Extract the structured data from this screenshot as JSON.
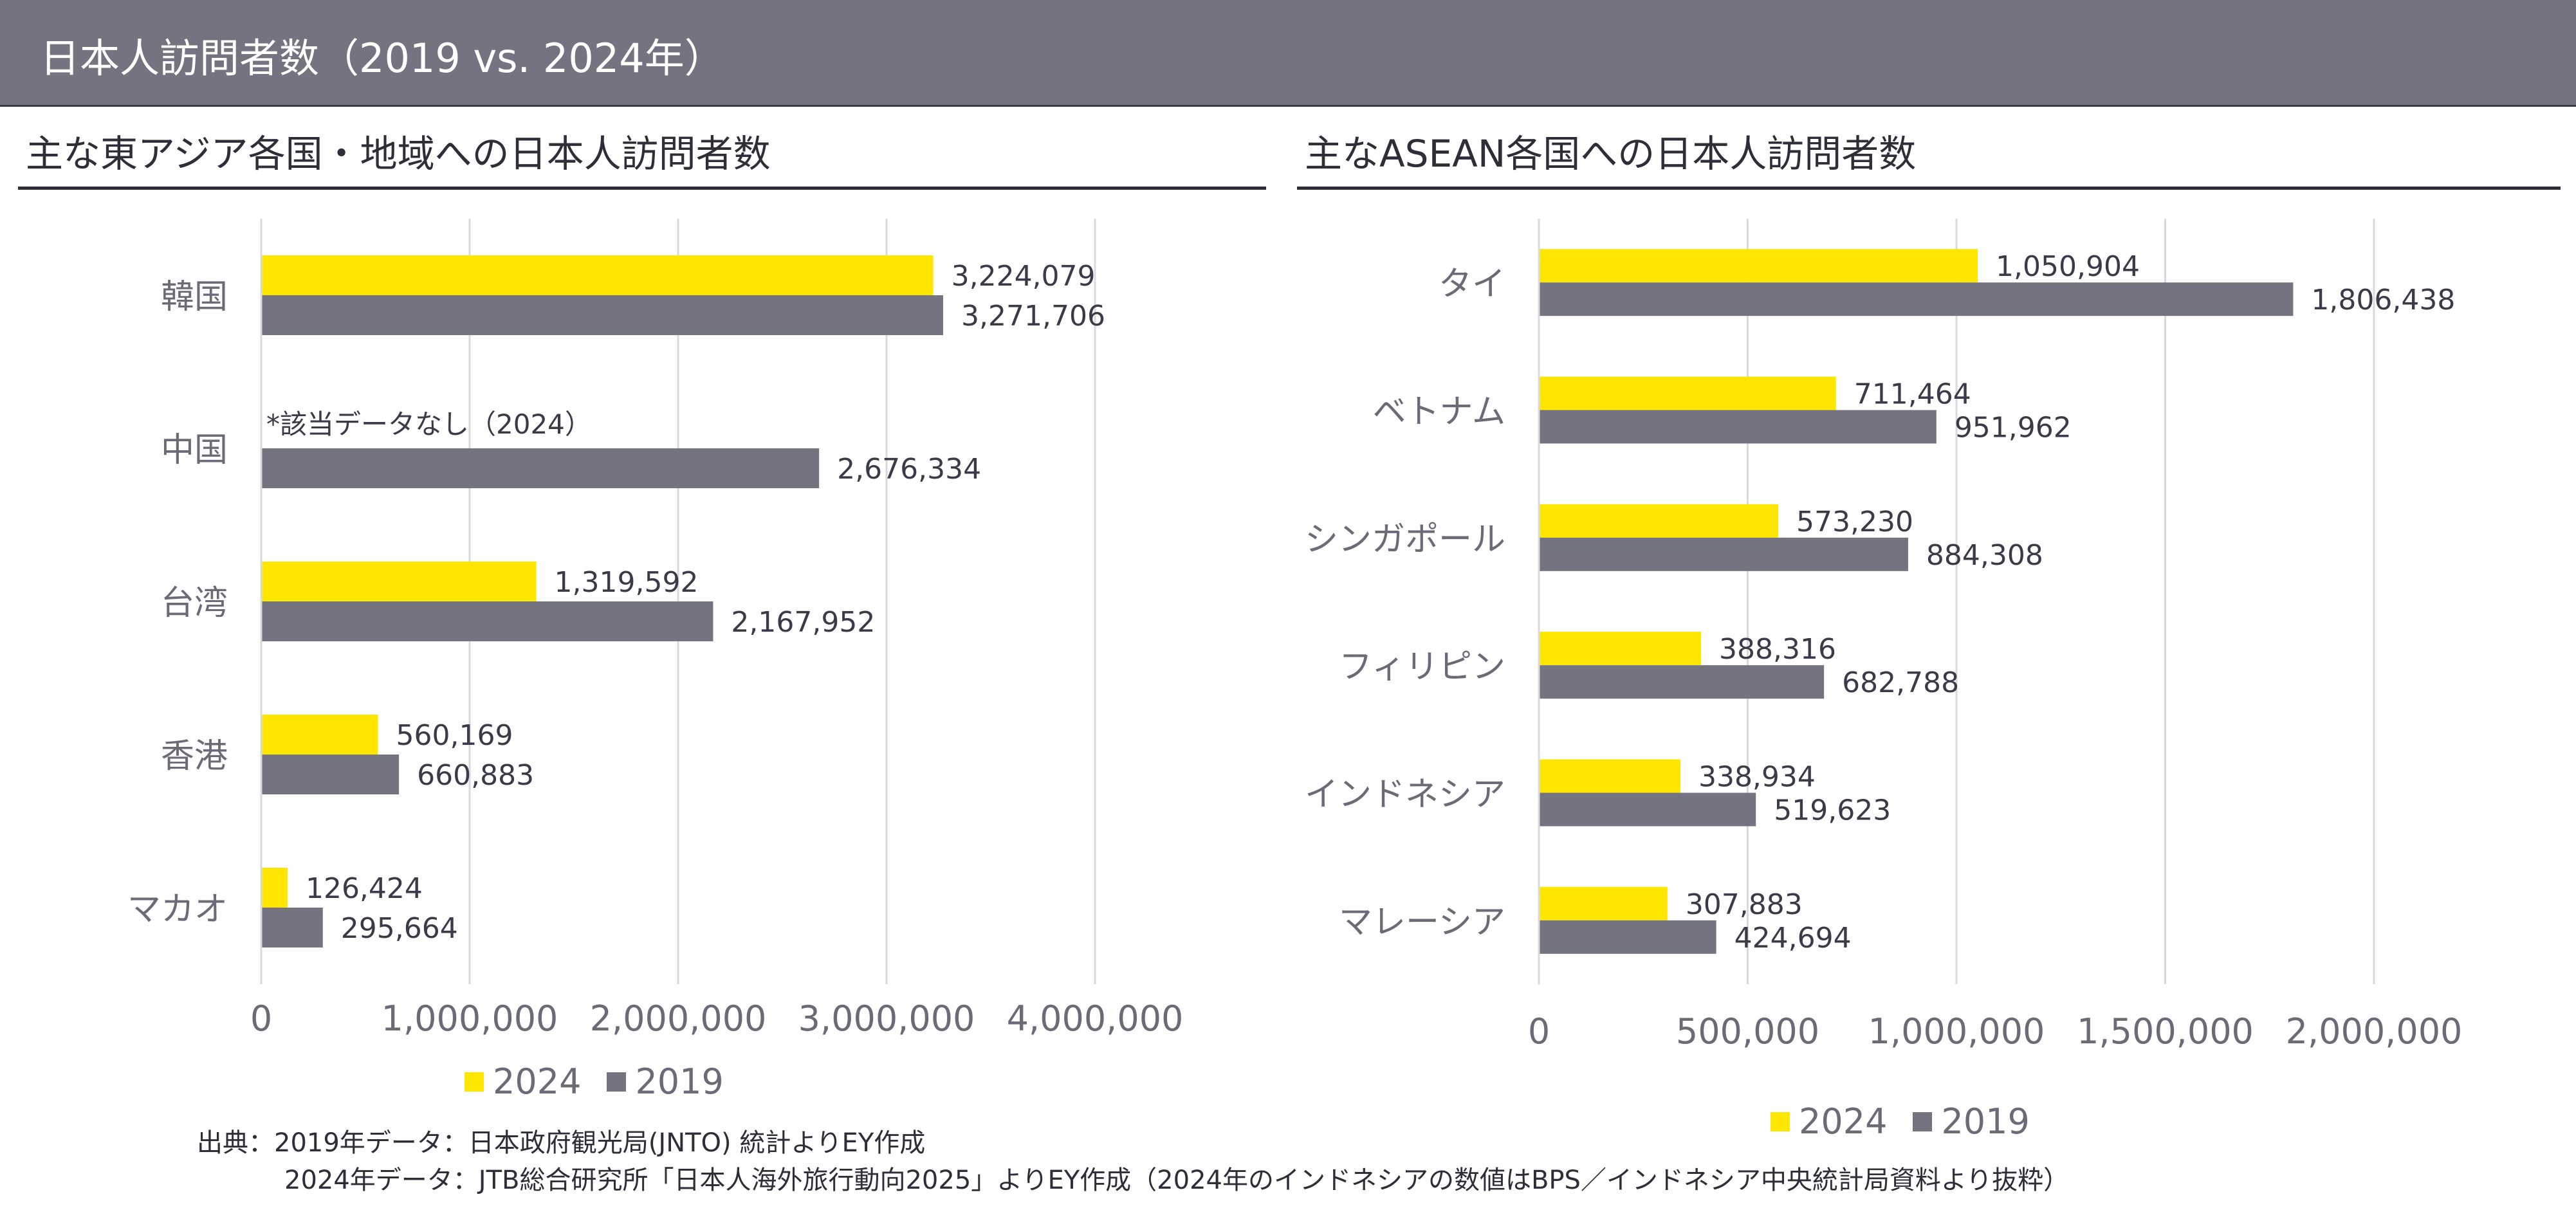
{
  "header": {
    "title": "日本人訪問者数（2019 vs. 2024年）"
  },
  "colors": {
    "series_2024": "#FFE600",
    "series_2019": "#747480",
    "grid": "#D9D9DE",
    "axis_text": "#6B6B78",
    "label_text": "#3A3A48"
  },
  "left_panel": {
    "subtitle": "主な東アジア各国・地域への日本人訪問者数"
  },
  "right_panel": {
    "subtitle": "主なASEAN各国への日本人訪問者数"
  },
  "chart_data": [
    {
      "type": "bar",
      "orientation": "horizontal",
      "title": "主な東アジア各国・地域への日本人訪問者数",
      "categories": [
        "韓国",
        "中国",
        "台湾",
        "香港",
        "マカオ"
      ],
      "series": [
        {
          "name": "2024",
          "values": [
            3224079,
            null,
            1319592,
            560169,
            126424
          ],
          "labels": [
            "3,224,079",
            "",
            "1,319,592",
            "560,169",
            "126,424"
          ]
        },
        {
          "name": "2019",
          "values": [
            3271706,
            2676334,
            2167952,
            660883,
            295664
          ],
          "labels": [
            "3,271,706",
            "2,676,334",
            "2,167,952",
            "660,883",
            "295,664"
          ]
        }
      ],
      "xlim": [
        0,
        4000000
      ],
      "ticks": [
        "0",
        "1,000,000",
        "2,000,000",
        "3,000,000",
        "4,000,000"
      ],
      "tick_values": [
        0,
        1000000,
        2000000,
        3000000,
        4000000
      ],
      "annotation": "*該当データなし（2024）",
      "legend": [
        "2024",
        "2019"
      ]
    },
    {
      "type": "bar",
      "orientation": "horizontal",
      "title": "主なASEAN各国への日本人訪問者数",
      "categories": [
        "タイ",
        "ベトナム",
        "シンガポール",
        "フィリピン",
        "インドネシア",
        "マレーシア"
      ],
      "series": [
        {
          "name": "2024",
          "values": [
            1050904,
            711464,
            573230,
            388316,
            338934,
            307883
          ],
          "labels": [
            "1,050,904",
            "711,464",
            "573,230",
            "388,316",
            "338,934",
            "307,883"
          ]
        },
        {
          "name": "2019",
          "values": [
            1806438,
            951962,
            884308,
            682788,
            519623,
            424694
          ],
          "labels": [
            "1,806,438",
            "951,962",
            "884,308",
            "682,788",
            "519,623",
            "424,694"
          ]
        }
      ],
      "xlim": [
        0,
        2000000
      ],
      "ticks": [
        "0",
        "500,000",
        "1,000,000",
        "1,500,000",
        "2,000,000"
      ],
      "tick_values": [
        0,
        500000,
        1000000,
        1500000,
        2000000
      ],
      "legend": [
        "2024",
        "2019"
      ]
    }
  ],
  "source": {
    "line1": "出典：2019年データ：日本政府観光局(JNTO) 統計よりEY作成",
    "line2": "2024年データ：JTB総合研究所「日本人海外旅行動向2025」よりEY作成（2024年のインドネシアの数値はBPS／インドネシア中央統計局資料より抜粋）"
  }
}
